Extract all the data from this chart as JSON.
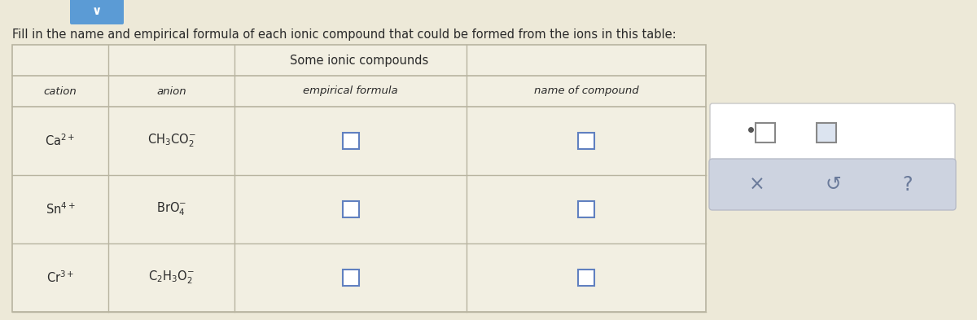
{
  "title_text": "Fill in the name and empirical formula of each ionic compound that could be formed from the ions in this table:",
  "table_title": "Some ionic compounds",
  "col_headers": [
    "cation",
    "anion",
    "empirical formula",
    "name of compound"
  ],
  "rows": [
    [
      "Ca$^{2+}$",
      "CH$_3$CO$_2^{-}$",
      "",
      ""
    ],
    [
      "Sn$^{4+}$",
      "BrO$_4^{-}$",
      "",
      ""
    ],
    [
      "Cr$^{3+}$",
      "C$_2$H$_3$O$_2^{-}$",
      "",
      ""
    ]
  ],
  "bg_color": "#ede9d8",
  "table_bg": "#f2efe2",
  "border_color": "#b8b4a0",
  "text_color": "#2a2a2a",
  "input_box_color": "#6080c0",
  "widget_panel_bg": "#cdd3e0",
  "title_fontsize": 10.5,
  "header_fontsize": 9.5,
  "cell_fontsize": 10.5,
  "fig_width": 12.0,
  "fig_height": 3.93
}
